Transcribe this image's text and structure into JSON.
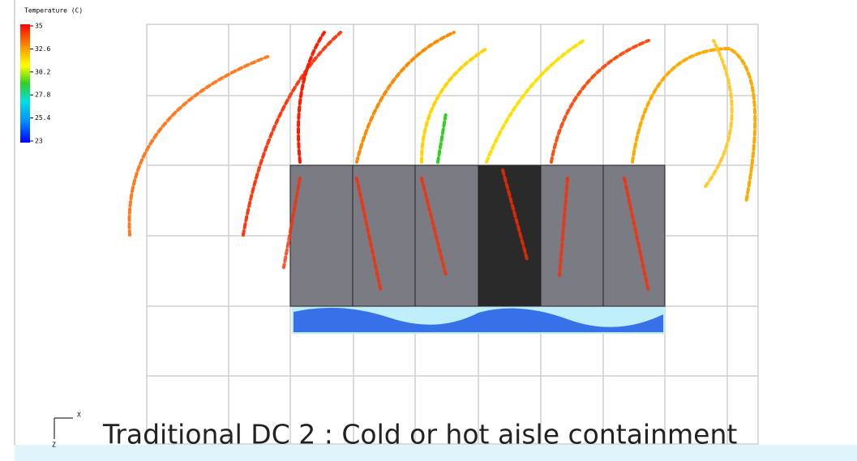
{
  "legend": {
    "title": "Temperature (C)",
    "ticks": [
      "35",
      "32.6",
      "30.2",
      "27.8",
      "25.4",
      "23"
    ]
  },
  "axes": {
    "x": "X",
    "z": "Z"
  },
  "caption": "Traditional DC 2 : Cold or hot aisle containment"
}
